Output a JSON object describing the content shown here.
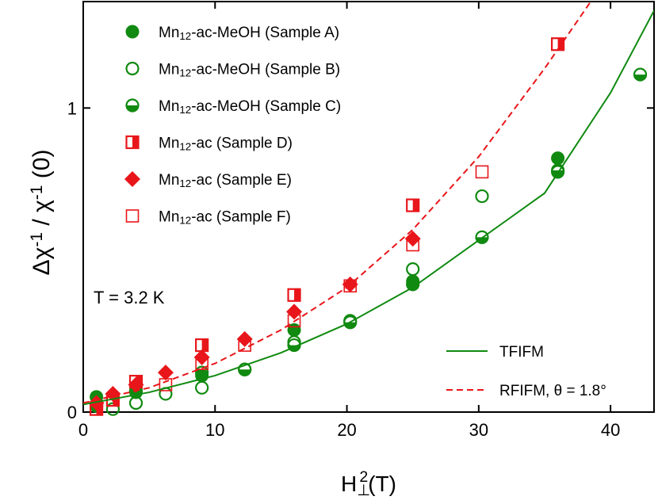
{
  "chart_data": {
    "type": "scatter",
    "x_label": "H⊥2(T)",
    "y_label": "Δχ-1 / χ-1 (0)",
    "annotation": "T = 3.2 K",
    "xlim": [
      0,
      43.3
    ],
    "ylim": [
      0,
      1.35
    ],
    "xticks": [
      0,
      10,
      20,
      30,
      40
    ],
    "yticks": [
      0,
      1
    ],
    "series": [
      {
        "name": "Mn12-ac-MeOH (Sample A)",
        "color": "#108a10",
        "marker": "filled-circle",
        "x": [
          1,
          4,
          9,
          16,
          25,
          36
        ],
        "values": [
          0.05,
          0.065,
          0.12,
          0.27,
          0.43,
          0.835
        ]
      },
      {
        "name": "Mn12-ac-MeOH (Sample B)",
        "color": "#108a10",
        "marker": "open-circle",
        "x": [
          2.25,
          4,
          6.25,
          9,
          12.25,
          16,
          20.25,
          25,
          30.25,
          36
        ],
        "values": [
          0.01,
          0.03,
          0.06,
          0.08,
          0.14,
          0.23,
          0.3,
          0.47,
          0.71,
          0.79
        ]
      },
      {
        "name": "Mn12-ac-MeOH (Sample C)",
        "color": "#108a10",
        "marker": "half-circle",
        "x": [
          1,
          4,
          9,
          12.25,
          16,
          20.25,
          25,
          30.25,
          36,
          42.25
        ],
        "values": [
          0.02,
          0.07,
          0.13,
          0.14,
          0.22,
          0.295,
          0.42,
          0.575,
          0.795,
          1.11
        ]
      },
      {
        "name": "Mn12-ac (Sample D)",
        "color": "#e8161a",
        "marker": "half-square",
        "x": [
          1,
          2.25,
          4,
          9,
          16,
          25,
          36
        ],
        "values": [
          0.01,
          0.04,
          0.1,
          0.22,
          0.385,
          0.68,
          1.21
        ]
      },
      {
        "name": "Mn12-ac (Sample E)",
        "color": "#e8161a",
        "marker": "diamond",
        "x": [
          1,
          2.25,
          4,
          6.25,
          9,
          12.25,
          16,
          20.25,
          25
        ],
        "values": [
          0.03,
          0.06,
          0.09,
          0.13,
          0.18,
          0.24,
          0.33,
          0.42,
          0.57
        ]
      },
      {
        "name": "Mn12-ac (Sample F)",
        "color": "#e8161a",
        "marker": "open-square",
        "x": [
          1,
          2.25,
          4,
          6.25,
          9,
          12.25,
          16,
          20.25,
          25,
          30.25
        ],
        "values": [
          0.01,
          0.04,
          0.1,
          0.09,
          0.16,
          0.22,
          0.3,
          0.415,
          0.55,
          0.79
        ]
      },
      {
        "name": "TFIFM",
        "color": "#108a10",
        "marker": "line",
        "dash": false,
        "x": [
          0,
          5,
          10,
          15,
          20,
          25,
          30,
          35,
          40,
          43.3
        ],
        "values": [
          0.025,
          0.065,
          0.12,
          0.195,
          0.29,
          0.41,
          0.565,
          0.72,
          1.05,
          1.32
        ]
      },
      {
        "name": "RFIFM, θ = 1.8°",
        "color": "#e8161a",
        "marker": "line",
        "dash": true,
        "x": [
          0,
          5,
          10,
          15,
          20,
          25,
          30,
          35,
          38.5
        ],
        "values": [
          0.03,
          0.08,
          0.16,
          0.27,
          0.41,
          0.6,
          0.84,
          1.13,
          1.35
        ]
      }
    ]
  }
}
